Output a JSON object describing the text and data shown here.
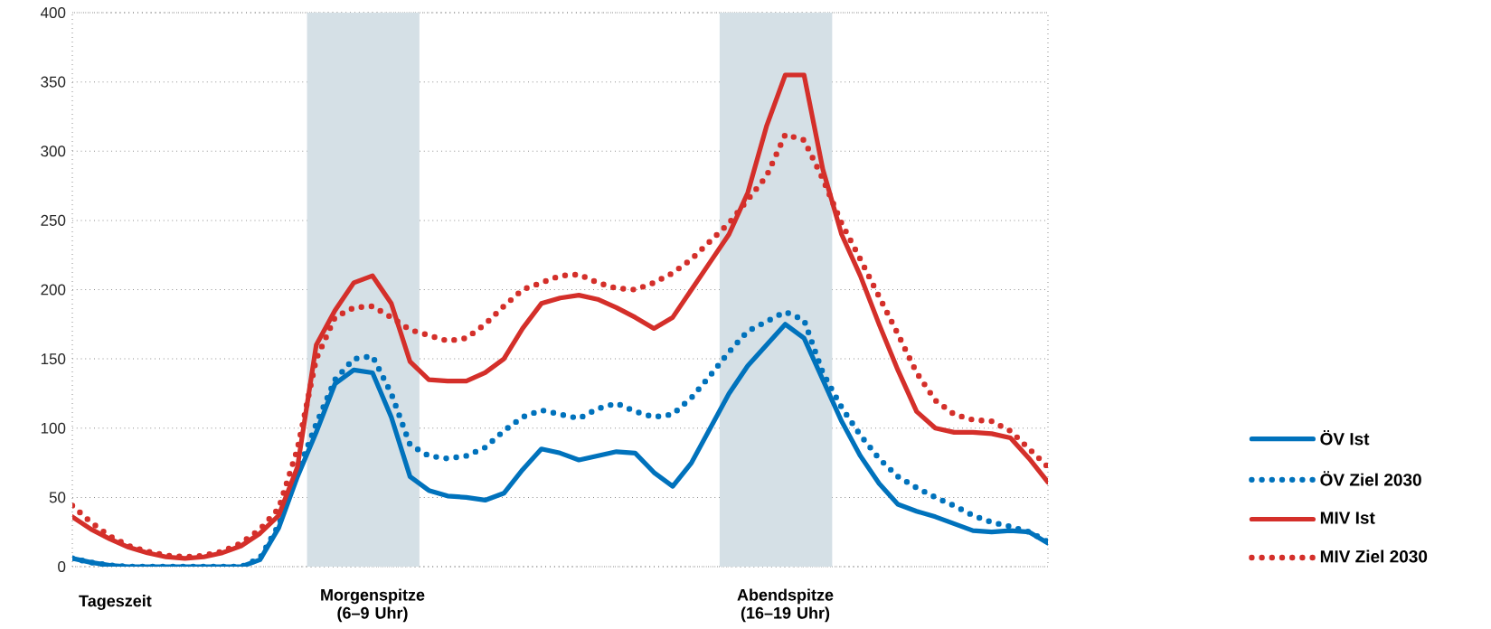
{
  "chart_data": {
    "type": "line",
    "xlabel": "Tageszeit",
    "categories": [
      null,
      null,
      null,
      null,
      null,
      null,
      null,
      null,
      null,
      null,
      null,
      null,
      null,
      null,
      null,
      null,
      "Morgenspitze (6–9 Uhr)",
      null,
      null,
      null,
      null,
      null,
      null,
      null,
      null,
      null,
      null,
      null,
      null,
      null,
      null,
      null,
      null,
      null,
      null,
      null,
      null,
      null,
      "Abendspitze (16–19 Uhr)",
      null,
      null,
      null,
      null,
      null,
      null,
      null,
      null,
      null,
      null,
      null,
      null,
      null,
      null
    ],
    "ylim": [
      0,
      400
    ],
    "yticks": [
      0,
      50,
      100,
      150,
      200,
      250,
      300,
      350,
      400
    ],
    "grid": "y",
    "legend": "right",
    "marker": "none",
    "series": [
      {
        "name": "ÖV Ist",
        "color": "#0072bc",
        "line_style": "solid",
        "values": [
          6,
          3,
          1,
          0,
          0,
          0,
          0,
          0,
          0,
          0,
          5,
          28,
          65,
          97,
          132,
          142,
          140,
          108,
          65,
          55,
          51,
          50,
          48,
          53,
          70,
          85,
          82,
          77,
          80,
          83,
          82,
          68,
          58,
          75,
          100,
          125,
          145,
          160,
          175,
          165,
          135,
          105,
          80,
          60,
          45,
          40,
          36,
          31,
          26,
          25,
          26,
          25,
          17
        ]
      },
      {
        "name": "ÖV Ziel 2030",
        "color": "#0072bc",
        "line_style": "dotted",
        "values": [
          6,
          3,
          1,
          0,
          0,
          0,
          0,
          0,
          0,
          0,
          6,
          30,
          68,
          103,
          135,
          150,
          152,
          125,
          88,
          80,
          78,
          80,
          86,
          98,
          108,
          113,
          110,
          107,
          114,
          118,
          112,
          108,
          110,
          122,
          138,
          155,
          170,
          177,
          184,
          178,
          140,
          115,
          95,
          78,
          65,
          57,
          50,
          44,
          37,
          32,
          29,
          25,
          18
        ]
      },
      {
        "name": "MIV Ist",
        "color": "#d42f2a",
        "line_style": "solid",
        "values": [
          36,
          27,
          20,
          14,
          10,
          7,
          6,
          7,
          10,
          15,
          24,
          37,
          72,
          160,
          185,
          205,
          210,
          190,
          148,
          135,
          134,
          134,
          140,
          150,
          172,
          190,
          194,
          196,
          193,
          187,
          180,
          172,
          180,
          200,
          220,
          240,
          270,
          318,
          355,
          355,
          287,
          240,
          210,
          175,
          142,
          112,
          100,
          97,
          97,
          96,
          93,
          78,
          61
        ]
      },
      {
        "name": "MIV Ziel 2030",
        "color": "#d42f2a",
        "line_style": "dotted",
        "values": [
          44,
          32,
          22,
          15,
          11,
          8,
          7,
          8,
          11,
          17,
          27,
          42,
          85,
          150,
          180,
          187,
          188,
          180,
          171,
          167,
          163,
          165,
          175,
          188,
          200,
          205,
          210,
          211,
          205,
          201,
          200,
          205,
          212,
          222,
          235,
          248,
          265,
          282,
          312,
          308,
          280,
          248,
          222,
          195,
          168,
          140,
          120,
          110,
          106,
          105,
          98,
          85,
          72
        ]
      }
    ]
  }
}
